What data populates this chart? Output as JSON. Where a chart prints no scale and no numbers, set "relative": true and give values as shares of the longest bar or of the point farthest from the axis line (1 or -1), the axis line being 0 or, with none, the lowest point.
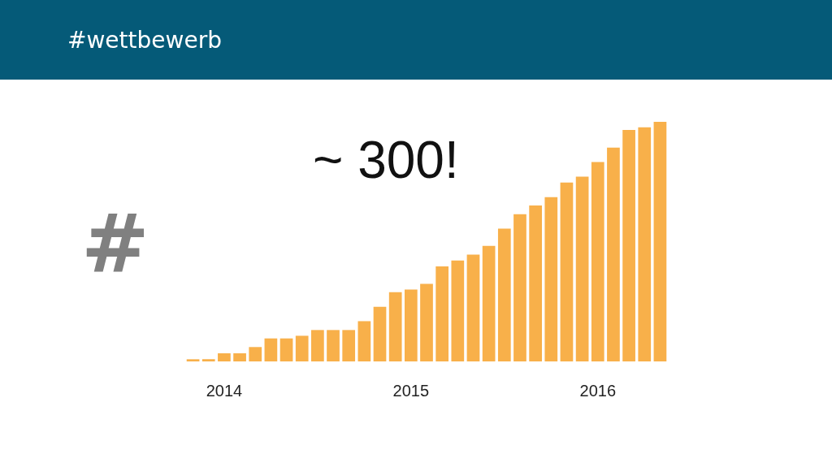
{
  "chart_data": {
    "type": "bar",
    "title": "#wettbewerb",
    "ylabel": "#",
    "annotations": [
      "~ 300!"
    ],
    "relative": true,
    "color": "#f8b04a",
    "categories": [
      null,
      null,
      "2014",
      null,
      null,
      null,
      null,
      null,
      null,
      null,
      null,
      null,
      null,
      null,
      "2015",
      null,
      null,
      null,
      null,
      null,
      null,
      null,
      null,
      null,
      null,
      null,
      "2016",
      null,
      null,
      null,
      null
    ],
    "values": [
      0.009,
      0.009,
      0.034,
      0.034,
      0.06,
      0.096,
      0.096,
      0.107,
      0.131,
      0.131,
      0.131,
      0.168,
      0.228,
      0.289,
      0.3,
      0.324,
      0.397,
      0.421,
      0.446,
      0.482,
      0.554,
      0.614,
      0.651,
      0.686,
      0.747,
      0.771,
      0.832,
      0.892,
      0.966,
      0.977,
      1
    ]
  }
}
